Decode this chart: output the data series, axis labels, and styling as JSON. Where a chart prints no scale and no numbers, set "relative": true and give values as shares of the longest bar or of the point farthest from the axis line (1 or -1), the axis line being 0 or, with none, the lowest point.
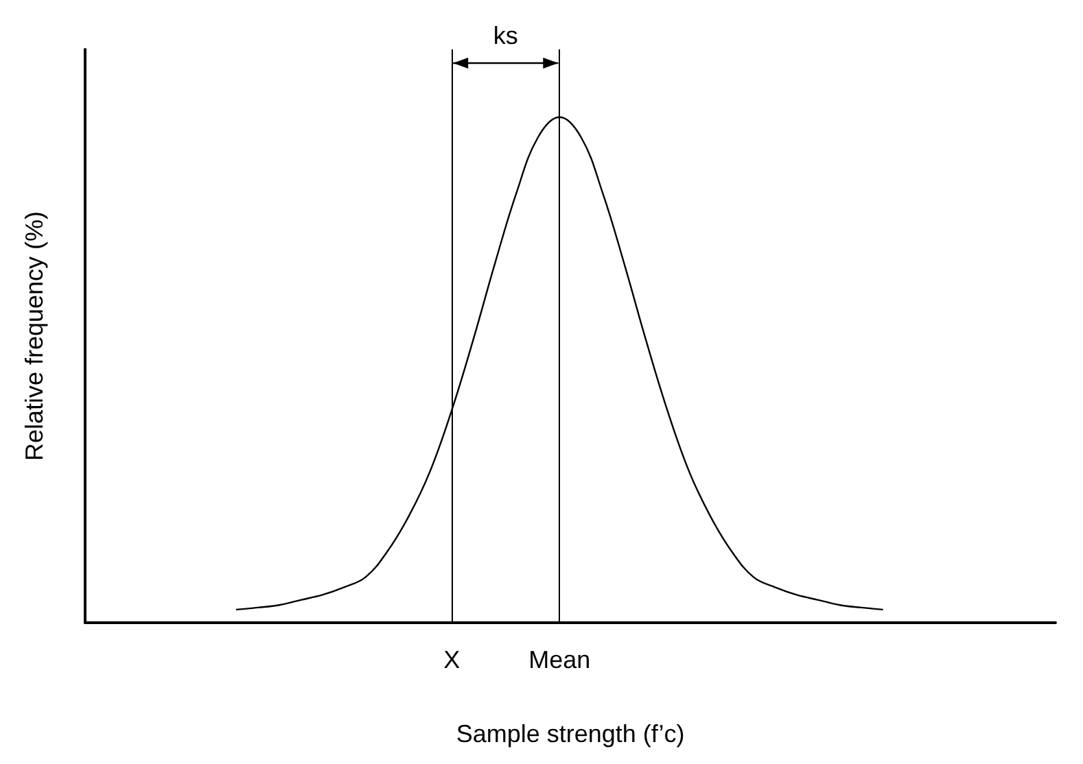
{
  "chart_data": {
    "type": "line",
    "relative": true,
    "xlabel": "Sample strength (f’c)",
    "ylabel": "Relative frequency (%)",
    "annotations": [
      "ks"
    ],
    "categories": [
      null,
      null,
      null,
      null,
      null,
      null,
      null,
      null,
      null,
      null,
      null,
      null,
      null,
      null,
      null,
      null,
      null,
      "X",
      null,
      null,
      null,
      null,
      "Mean",
      null,
      null,
      null,
      null,
      null,
      null,
      null,
      null,
      null,
      null,
      null,
      null,
      null,
      null,
      null,
      null,
      null,
      null,
      null,
      null,
      null,
      null,
      null
    ],
    "series": [
      {
        "color": "#000000",
        "values": [
          null,
          null,
          null,
          null,
          null,
          null,
          null,
          0.026,
          0.03,
          0.035,
          0.045,
          0.055,
          0.07,
          0.09,
          0.14,
          0.21,
          0.3,
          0.42,
          0.56,
          0.71,
          0.85,
          0.96,
          1.0,
          0.96,
          0.85,
          0.71,
          0.56,
          0.42,
          0.3,
          0.21,
          0.14,
          0.09,
          0.07,
          0.055,
          0.045,
          0.035,
          0.03,
          0.026,
          null,
          null,
          null,
          null,
          null,
          null,
          null,
          null
        ]
      }
    ],
    "ref_lines": [
      {
        "axis": "x",
        "value": "X",
        "color": "#000000"
      },
      {
        "axis": "x",
        "value": "Mean",
        "color": "#000000"
      }
    ],
    "grid": false,
    "marker": "none",
    "line_style": "solid"
  }
}
